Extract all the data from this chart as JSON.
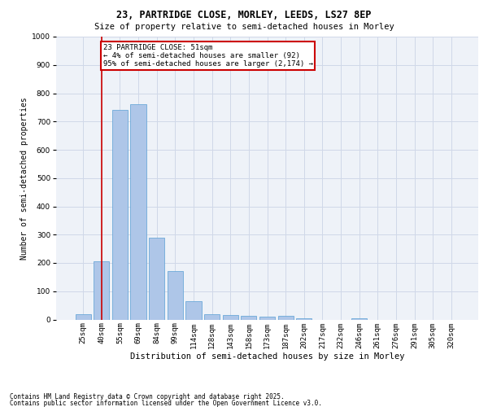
{
  "title1": "23, PARTRIDGE CLOSE, MORLEY, LEEDS, LS27 8EP",
  "title2": "Size of property relative to semi-detached houses in Morley",
  "xlabel": "Distribution of semi-detached houses by size in Morley",
  "ylabel": "Number of semi-detached properties",
  "categories": [
    "25sqm",
    "40sqm",
    "55sqm",
    "69sqm",
    "84sqm",
    "99sqm",
    "114sqm",
    "128sqm",
    "143sqm",
    "158sqm",
    "173sqm",
    "187sqm",
    "202sqm",
    "217sqm",
    "232sqm",
    "246sqm",
    "261sqm",
    "276sqm",
    "291sqm",
    "305sqm",
    "320sqm"
  ],
  "values": [
    20,
    205,
    740,
    760,
    290,
    170,
    65,
    18,
    15,
    12,
    10,
    12,
    5,
    0,
    0,
    5,
    0,
    0,
    0,
    0,
    0
  ],
  "bar_color": "#aec6e8",
  "bar_edge_color": "#5a9fd4",
  "red_line_x": 1.0,
  "annotation_title": "23 PARTRIDGE CLOSE: 51sqm",
  "annotation_line1": "← 4% of semi-detached houses are smaller (92)",
  "annotation_line2": "95% of semi-detached houses are larger (2,174) →",
  "annotation_box_color": "#ffffff",
  "annotation_box_edge": "#cc0000",
  "red_line_color": "#cc0000",
  "grid_color": "#d0d8e8",
  "background_color": "#eef2f8",
  "ylim": [
    0,
    1000
  ],
  "yticks": [
    0,
    100,
    200,
    300,
    400,
    500,
    600,
    700,
    800,
    900,
    1000
  ],
  "footnote1": "Contains HM Land Registry data © Crown copyright and database right 2025.",
  "footnote2": "Contains public sector information licensed under the Open Government Licence v3.0.",
  "title1_fontsize": 8.5,
  "title2_fontsize": 7.5,
  "xlabel_fontsize": 7.5,
  "ylabel_fontsize": 7.0,
  "tick_fontsize": 6.5,
  "annot_fontsize": 6.5,
  "footnote_fontsize": 5.5
}
